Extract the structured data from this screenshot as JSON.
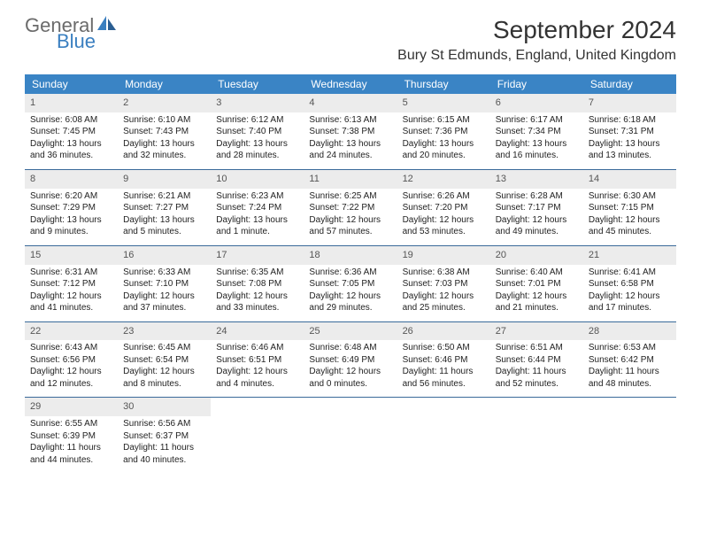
{
  "logo": {
    "word1": "General",
    "word2": "Blue",
    "color1": "#6b6b6b",
    "color2": "#3a7fc0"
  },
  "title": "September 2024",
  "location": "Bury St Edmunds, England, United Kingdom",
  "header_bg": "#3a84c5",
  "daynum_bg": "#ececec",
  "row_border": "#3a6a9a",
  "weekdays": [
    "Sunday",
    "Monday",
    "Tuesday",
    "Wednesday",
    "Thursday",
    "Friday",
    "Saturday"
  ],
  "weeks": [
    [
      {
        "n": "1",
        "sr": "6:08 AM",
        "ss": "7:45 PM",
        "dl": "13 hours and 36 minutes."
      },
      {
        "n": "2",
        "sr": "6:10 AM",
        "ss": "7:43 PM",
        "dl": "13 hours and 32 minutes."
      },
      {
        "n": "3",
        "sr": "6:12 AM",
        "ss": "7:40 PM",
        "dl": "13 hours and 28 minutes."
      },
      {
        "n": "4",
        "sr": "6:13 AM",
        "ss": "7:38 PM",
        "dl": "13 hours and 24 minutes."
      },
      {
        "n": "5",
        "sr": "6:15 AM",
        "ss": "7:36 PM",
        "dl": "13 hours and 20 minutes."
      },
      {
        "n": "6",
        "sr": "6:17 AM",
        "ss": "7:34 PM",
        "dl": "13 hours and 16 minutes."
      },
      {
        "n": "7",
        "sr": "6:18 AM",
        "ss": "7:31 PM",
        "dl": "13 hours and 13 minutes."
      }
    ],
    [
      {
        "n": "8",
        "sr": "6:20 AM",
        "ss": "7:29 PM",
        "dl": "13 hours and 9 minutes."
      },
      {
        "n": "9",
        "sr": "6:21 AM",
        "ss": "7:27 PM",
        "dl": "13 hours and 5 minutes."
      },
      {
        "n": "10",
        "sr": "6:23 AM",
        "ss": "7:24 PM",
        "dl": "13 hours and 1 minute."
      },
      {
        "n": "11",
        "sr": "6:25 AM",
        "ss": "7:22 PM",
        "dl": "12 hours and 57 minutes."
      },
      {
        "n": "12",
        "sr": "6:26 AM",
        "ss": "7:20 PM",
        "dl": "12 hours and 53 minutes."
      },
      {
        "n": "13",
        "sr": "6:28 AM",
        "ss": "7:17 PM",
        "dl": "12 hours and 49 minutes."
      },
      {
        "n": "14",
        "sr": "6:30 AM",
        "ss": "7:15 PM",
        "dl": "12 hours and 45 minutes."
      }
    ],
    [
      {
        "n": "15",
        "sr": "6:31 AM",
        "ss": "7:12 PM",
        "dl": "12 hours and 41 minutes."
      },
      {
        "n": "16",
        "sr": "6:33 AM",
        "ss": "7:10 PM",
        "dl": "12 hours and 37 minutes."
      },
      {
        "n": "17",
        "sr": "6:35 AM",
        "ss": "7:08 PM",
        "dl": "12 hours and 33 minutes."
      },
      {
        "n": "18",
        "sr": "6:36 AM",
        "ss": "7:05 PM",
        "dl": "12 hours and 29 minutes."
      },
      {
        "n": "19",
        "sr": "6:38 AM",
        "ss": "7:03 PM",
        "dl": "12 hours and 25 minutes."
      },
      {
        "n": "20",
        "sr": "6:40 AM",
        "ss": "7:01 PM",
        "dl": "12 hours and 21 minutes."
      },
      {
        "n": "21",
        "sr": "6:41 AM",
        "ss": "6:58 PM",
        "dl": "12 hours and 17 minutes."
      }
    ],
    [
      {
        "n": "22",
        "sr": "6:43 AM",
        "ss": "6:56 PM",
        "dl": "12 hours and 12 minutes."
      },
      {
        "n": "23",
        "sr": "6:45 AM",
        "ss": "6:54 PM",
        "dl": "12 hours and 8 minutes."
      },
      {
        "n": "24",
        "sr": "6:46 AM",
        "ss": "6:51 PM",
        "dl": "12 hours and 4 minutes."
      },
      {
        "n": "25",
        "sr": "6:48 AM",
        "ss": "6:49 PM",
        "dl": "12 hours and 0 minutes."
      },
      {
        "n": "26",
        "sr": "6:50 AM",
        "ss": "6:46 PM",
        "dl": "11 hours and 56 minutes."
      },
      {
        "n": "27",
        "sr": "6:51 AM",
        "ss": "6:44 PM",
        "dl": "11 hours and 52 minutes."
      },
      {
        "n": "28",
        "sr": "6:53 AM",
        "ss": "6:42 PM",
        "dl": "11 hours and 48 minutes."
      }
    ],
    [
      {
        "n": "29",
        "sr": "6:55 AM",
        "ss": "6:39 PM",
        "dl": "11 hours and 44 minutes."
      },
      {
        "n": "30",
        "sr": "6:56 AM",
        "ss": "6:37 PM",
        "dl": "11 hours and 40 minutes."
      },
      {
        "empty": true
      },
      {
        "empty": true
      },
      {
        "empty": true
      },
      {
        "empty": true
      },
      {
        "empty": true
      }
    ]
  ],
  "labels": {
    "sunrise": "Sunrise:",
    "sunset": "Sunset:",
    "daylight": "Daylight:"
  }
}
